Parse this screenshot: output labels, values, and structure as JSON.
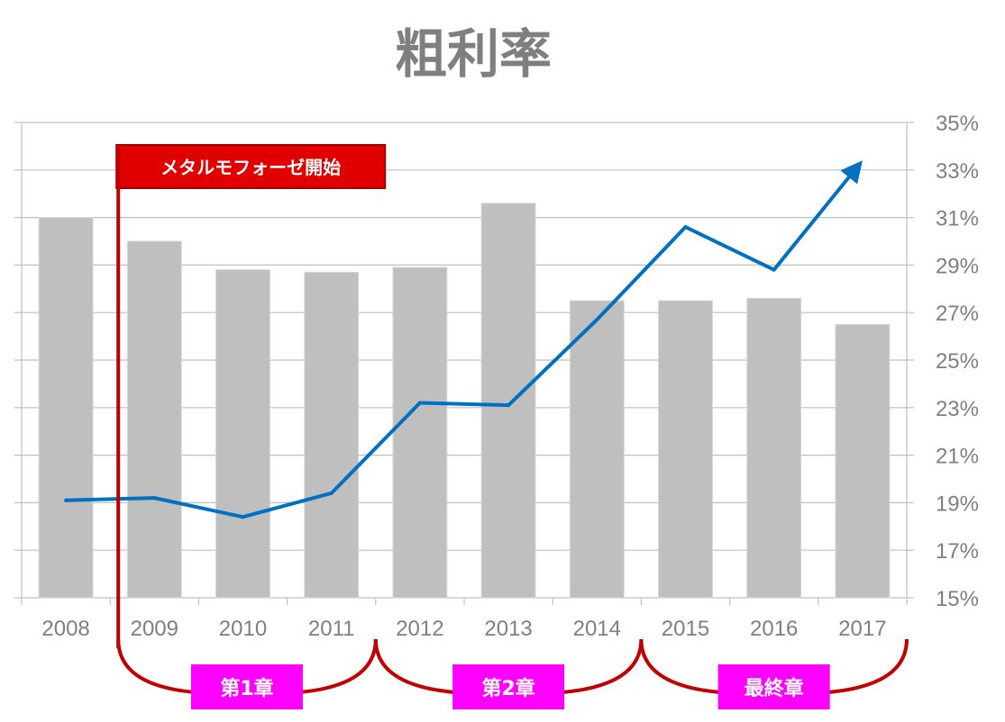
{
  "chart_data": {
    "type": "bar",
    "title": "粗利率",
    "categories": [
      "2008",
      "2009",
      "2010",
      "2011",
      "2012",
      "2013",
      "2014",
      "2015",
      "2016",
      "2017"
    ],
    "series": [
      {
        "type": "bar",
        "values": [
          31.0,
          30.0,
          28.8,
          28.7,
          28.9,
          31.6,
          27.5,
          27.5,
          27.6,
          26.5
        ]
      },
      {
        "type": "line",
        "values": [
          19.1,
          19.2,
          18.4,
          19.4,
          23.2,
          23.1,
          26.7,
          30.6,
          28.8,
          33.4
        ]
      }
    ],
    "bar_axis_ylim": [
      15,
      35
    ],
    "y_axis": {
      "position": "right",
      "ylim": [
        15,
        35
      ],
      "ticks": [
        "15%",
        "17%",
        "19%",
        "21%",
        "23%",
        "25%",
        "27%",
        "29%",
        "31%",
        "33%",
        "35%"
      ]
    },
    "line_end_arrow": true,
    "grid": true,
    "colors": {
      "bar": "#bfbfbf",
      "line": "#0070c0",
      "annotation_red": "#c00000",
      "annotation_box": "#e00000",
      "chapter_box": "#ff00ff",
      "text": "#7f7f7f",
      "grid": "#bfbfbf"
    },
    "annotations": {
      "start_marker": {
        "label": "メタルモフォーゼ開始",
        "after_category": "2008"
      },
      "chapters": [
        {
          "label": "第1章",
          "from": "2009",
          "to": "2011"
        },
        {
          "label": "第2章",
          "from": "2012",
          "to": "2014"
        },
        {
          "label": "最終章",
          "from": "2015",
          "to": "2017"
        }
      ]
    }
  }
}
